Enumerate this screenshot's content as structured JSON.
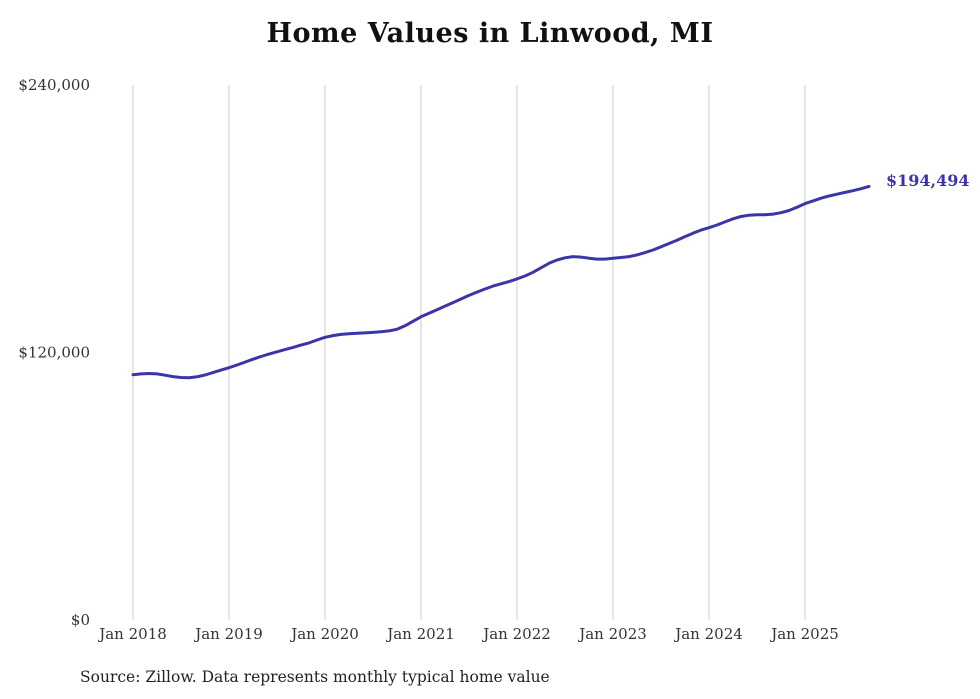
{
  "chart_data": {
    "type": "line",
    "title": "Home Values in Linwood, MI",
    "ylim": [
      0,
      240000
    ],
    "grid": "vertical-only",
    "legend": "none",
    "end_label": "$194,494",
    "source_note": "Source: Zillow. Data represents monthly typical home value",
    "colors": {
      "line": "#3b35a9",
      "gridline": "#cccccc",
      "axis_text": "#333333"
    },
    "y_ticks": [
      {
        "value": 0,
        "label": "$0"
      },
      {
        "value": 120000,
        "label": "$120,000"
      },
      {
        "value": 240000,
        "label": "$240,000"
      }
    ],
    "x_ticks": [
      {
        "month_index": 0,
        "label": "Jan 2018"
      },
      {
        "month_index": 12,
        "label": "Jan 2019"
      },
      {
        "month_index": 24,
        "label": "Jan 2020"
      },
      {
        "month_index": 36,
        "label": "Jan 2021"
      },
      {
        "month_index": 48,
        "label": "Jan 2022"
      },
      {
        "month_index": 60,
        "label": "Jan 2023"
      },
      {
        "month_index": 72,
        "label": "Jan 2024"
      },
      {
        "month_index": 84,
        "label": "Jan 2025"
      }
    ],
    "series": [
      {
        "name": "Typical home value",
        "start_month": "2018-01",
        "frequency": "monthly",
        "values": [
          110000,
          110400,
          110600,
          110400,
          109800,
          109200,
          108800,
          108700,
          109100,
          109900,
          111000,
          112100,
          113200,
          114400,
          115700,
          117000,
          118200,
          119300,
          120300,
          121300,
          122300,
          123300,
          124300,
          125600,
          126800,
          127600,
          128100,
          128400,
          128600,
          128800,
          129000,
          129300,
          129700,
          130400,
          132000,
          134000,
          136000,
          137600,
          139200,
          140800,
          142400,
          144000,
          145600,
          147100,
          148500,
          149800,
          150800,
          151800,
          153000,
          154300,
          156000,
          158000,
          160000,
          161500,
          162500,
          163000,
          162800,
          162300,
          161900,
          161900,
          162300,
          162600,
          163000,
          163800,
          164800,
          166000,
          167400,
          168900,
          170400,
          172000,
          173500,
          174900,
          176000,
          177200,
          178600,
          180000,
          181000,
          181600,
          181800,
          181800,
          182100,
          182700,
          183700,
          185200,
          186800,
          188000,
          189200,
          190200,
          191000,
          191800,
          192600,
          193500,
          194494
        ]
      }
    ]
  }
}
